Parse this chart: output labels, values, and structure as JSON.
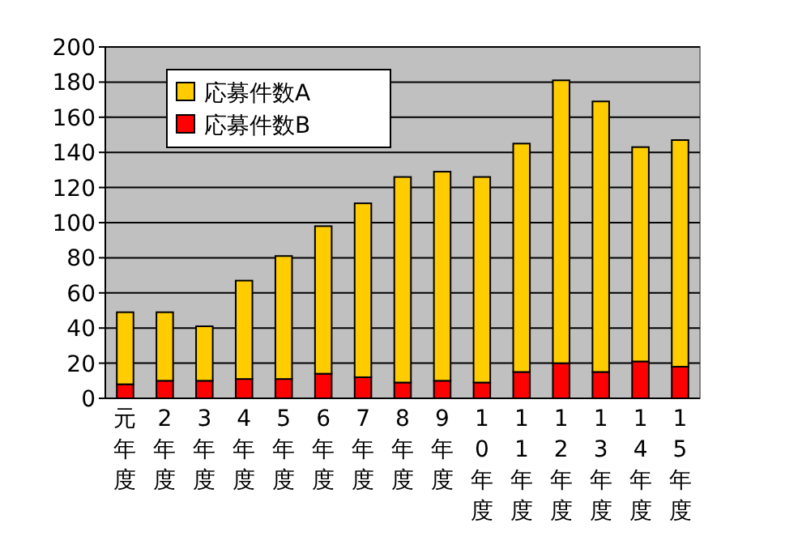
{
  "chart_data": {
    "type": "bar",
    "stacked": true,
    "categories": [
      "元年度",
      "2年度",
      "3年度",
      "4年度",
      "5年度",
      "6年度",
      "7年度",
      "8年度",
      "9年度",
      "10年度",
      "11年度",
      "12年度",
      "13年度",
      "14年度",
      "15年度"
    ],
    "series": [
      {
        "name": "応募件数B",
        "color": "#ff0000",
        "values": [
          8,
          10,
          10,
          11,
          11,
          14,
          12,
          9,
          10,
          9,
          15,
          20,
          15,
          21,
          18
        ]
      },
      {
        "name": "応募件数A",
        "color": "#ffcc00",
        "values": [
          41,
          39,
          31,
          56,
          70,
          84,
          99,
          117,
          119,
          117,
          130,
          161,
          154,
          122,
          129
        ]
      }
    ],
    "ylim": [
      0,
      200
    ],
    "yticks": [
      0,
      20,
      40,
      60,
      80,
      100,
      120,
      140,
      160,
      180,
      200
    ],
    "grid": "y",
    "legend": "top left"
  }
}
